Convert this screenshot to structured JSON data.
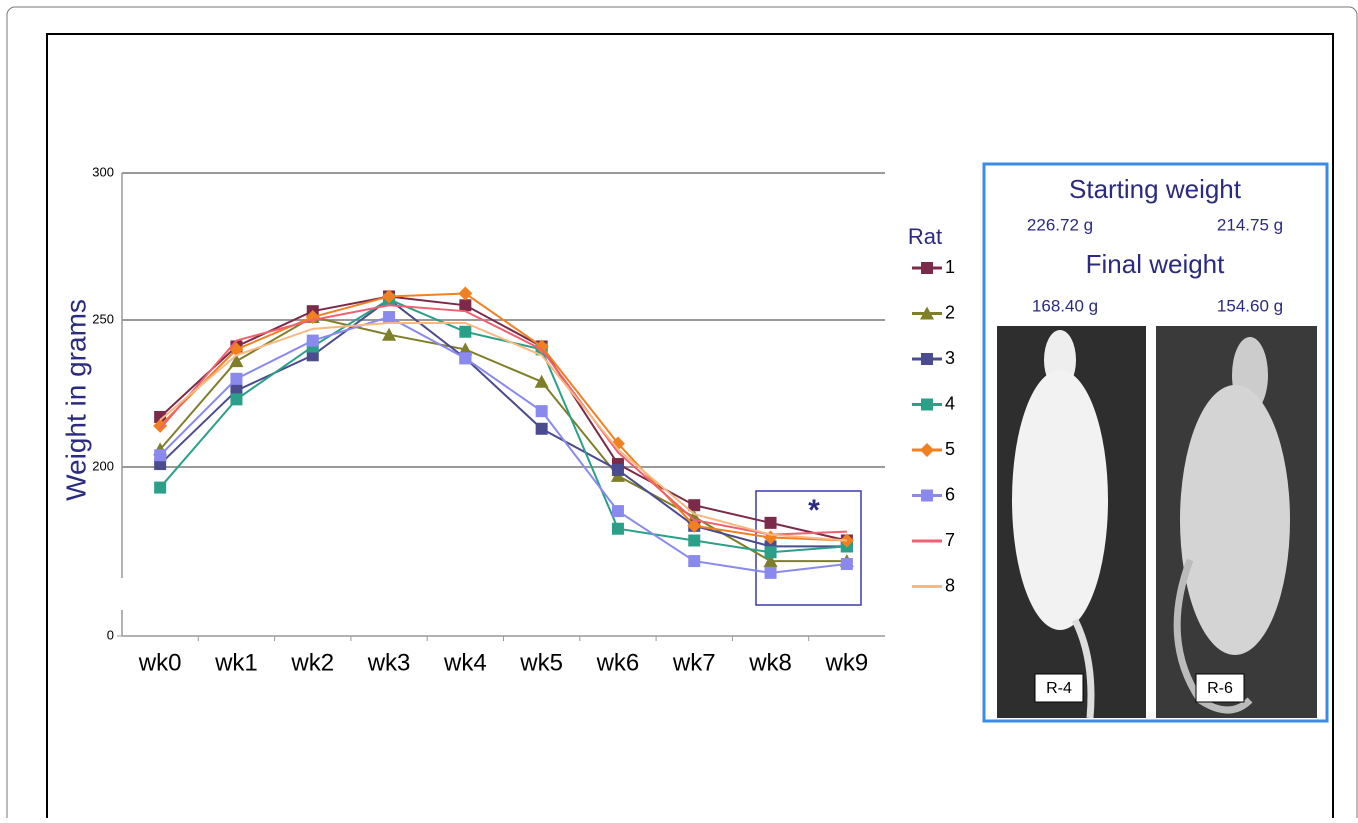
{
  "chart_data": {
    "type": "line",
    "y_label": "Weight in grams",
    "categories": [
      "wk0",
      "wk1",
      "wk2",
      "wk3",
      "wk4",
      "wk5",
      "wk6",
      "wk7",
      "wk8",
      "wk9"
    ],
    "ylim": [
      0,
      300
    ],
    "yticks": [
      0,
      200,
      250,
      300
    ],
    "grid": true,
    "legend_title": "Rat",
    "legend_position": "right",
    "annotation": "*",
    "series": [
      {
        "name": "1",
        "color": "#7b2a4a",
        "marker": "square",
        "values": [
          217,
          241,
          253,
          258,
          255,
          241,
          201,
          187,
          181,
          175
        ]
      },
      {
        "name": "2",
        "color": "#7f7f2a",
        "marker": "triangle",
        "values": [
          206,
          236,
          251,
          245,
          240,
          229,
          197,
          183,
          168,
          168
        ]
      },
      {
        "name": "3",
        "color": "#4b4b8f",
        "marker": "square",
        "values": [
          201,
          226,
          238,
          257,
          237,
          213,
          199,
          180,
          173,
          173
        ]
      },
      {
        "name": "4",
        "color": "#2aa089",
        "marker": "square",
        "values": [
          193,
          223,
          241,
          257,
          246,
          240,
          179,
          175,
          171,
          173
        ]
      },
      {
        "name": "5",
        "color": "#f08020",
        "marker": "diamond",
        "values": [
          214,
          240,
          251,
          258,
          259,
          241,
          208,
          180,
          176,
          175
        ]
      },
      {
        "name": "6",
        "color": "#8a8aee",
        "marker": "square",
        "values": [
          204,
          230,
          243,
          251,
          237,
          219,
          185,
          168,
          164,
          167
        ]
      },
      {
        "name": "7",
        "color": "#f06070",
        "marker": "none",
        "values": [
          213,
          243,
          250,
          255,
          253,
          240,
          205,
          182,
          177,
          178
        ]
      },
      {
        "name": "8",
        "color": "#f8b880",
        "marker": "none",
        "values": [
          216,
          238,
          247,
          249,
          249,
          238,
          206,
          184,
          177,
          175
        ]
      }
    ]
  },
  "panel": {
    "start_title": "Starting weight",
    "start": [
      "226.72 g",
      "214.75 g"
    ],
    "final_title": "Final weight",
    "final": [
      "168.40 g",
      "154.60 g"
    ],
    "labels": [
      "R-4",
      "R-6"
    ]
  }
}
